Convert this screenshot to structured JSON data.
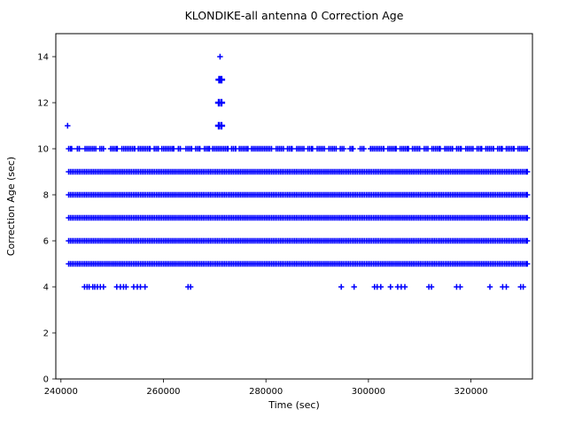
{
  "chart_data": {
    "type": "scatter",
    "title": "KLONDIKE-all antenna 0 Correction Age",
    "xlabel": "Time (sec)",
    "ylabel": "Correction Age (sec)",
    "marker": "+",
    "color": "#0000ff",
    "grid": false,
    "legend": null,
    "xlim": [
      239000,
      332000
    ],
    "ylim": [
      0,
      15
    ],
    "xticks": [
      240000,
      260000,
      280000,
      300000,
      320000
    ],
    "yticks": [
      0,
      2,
      4,
      6,
      8,
      10,
      12,
      14
    ],
    "bands": [
      {
        "y": 5,
        "step": 350,
        "segments": [
          [
            241500,
            331000
          ]
        ]
      },
      {
        "y": 6,
        "step": 350,
        "segments": [
          [
            241500,
            331000
          ]
        ]
      },
      {
        "y": 7,
        "step": 350,
        "segments": [
          [
            241500,
            331000
          ]
        ]
      },
      {
        "y": 8,
        "step": 350,
        "segments": [
          [
            241500,
            331000
          ]
        ]
      },
      {
        "y": 9,
        "step": 350,
        "segments": [
          [
            241500,
            331000
          ]
        ]
      },
      {
        "y": 10,
        "step": 350,
        "segments": [
          [
            241500,
            242100
          ],
          [
            243200,
            243600
          ],
          [
            244700,
            246800
          ],
          [
            247600,
            248300
          ],
          [
            249700,
            251000
          ],
          [
            251900,
            254400
          ],
          [
            255100,
            257400
          ],
          [
            258200,
            259000
          ],
          [
            259700,
            262000
          ],
          [
            262900,
            263300
          ],
          [
            264400,
            265500
          ],
          [
            266300,
            267100
          ],
          [
            268000,
            269000
          ],
          [
            269600,
            272600
          ],
          [
            273300,
            274100
          ],
          [
            274800,
            276500
          ],
          [
            277200,
            281100
          ],
          [
            282000,
            283400
          ],
          [
            284200,
            285100
          ],
          [
            286000,
            287400
          ],
          [
            288200,
            289100
          ],
          [
            290000,
            291400
          ],
          [
            292300,
            293700
          ],
          [
            294500,
            295200
          ],
          [
            296400,
            297000
          ],
          [
            298400,
            299100
          ],
          [
            300400,
            303000
          ],
          [
            303800,
            305400
          ],
          [
            306200,
            307800
          ],
          [
            308600,
            310000
          ],
          [
            310900,
            311600
          ],
          [
            312400,
            314000
          ],
          [
            314900,
            316400
          ],
          [
            317200,
            318100
          ],
          [
            319000,
            320400
          ],
          [
            321200,
            322100
          ],
          [
            322900,
            324400
          ],
          [
            325200,
            326100
          ],
          [
            326900,
            328400
          ],
          [
            329200,
            331000
          ]
        ]
      }
    ],
    "points": [
      [
        244600,
        4
      ],
      [
        245100,
        4
      ],
      [
        245500,
        4
      ],
      [
        246200,
        4
      ],
      [
        246600,
        4
      ],
      [
        247100,
        4
      ],
      [
        247700,
        4
      ],
      [
        248300,
        4
      ],
      [
        250900,
        4
      ],
      [
        251600,
        4
      ],
      [
        252200,
        4
      ],
      [
        252700,
        4
      ],
      [
        254200,
        4
      ],
      [
        254900,
        4
      ],
      [
        255500,
        4
      ],
      [
        256400,
        4
      ],
      [
        264800,
        4
      ],
      [
        265300,
        4
      ],
      [
        294700,
        4
      ],
      [
        297200,
        4
      ],
      [
        301200,
        4
      ],
      [
        301700,
        4
      ],
      [
        302400,
        4
      ],
      [
        304300,
        4
      ],
      [
        305700,
        4
      ],
      [
        306400,
        4
      ],
      [
        307100,
        4
      ],
      [
        311800,
        4
      ],
      [
        312300,
        4
      ],
      [
        317200,
        4
      ],
      [
        317900,
        4
      ],
      [
        323700,
        4
      ],
      [
        326200,
        4
      ],
      [
        326900,
        4
      ],
      [
        329700,
        4
      ],
      [
        330200,
        4
      ],
      [
        241300,
        11
      ],
      [
        270800,
        11,
        1
      ],
      [
        271300,
        11,
        1
      ],
      [
        270800,
        12,
        1
      ],
      [
        271300,
        12,
        1
      ],
      [
        270900,
        13,
        1
      ],
      [
        271300,
        13,
        1
      ],
      [
        271050,
        14
      ]
    ]
  }
}
